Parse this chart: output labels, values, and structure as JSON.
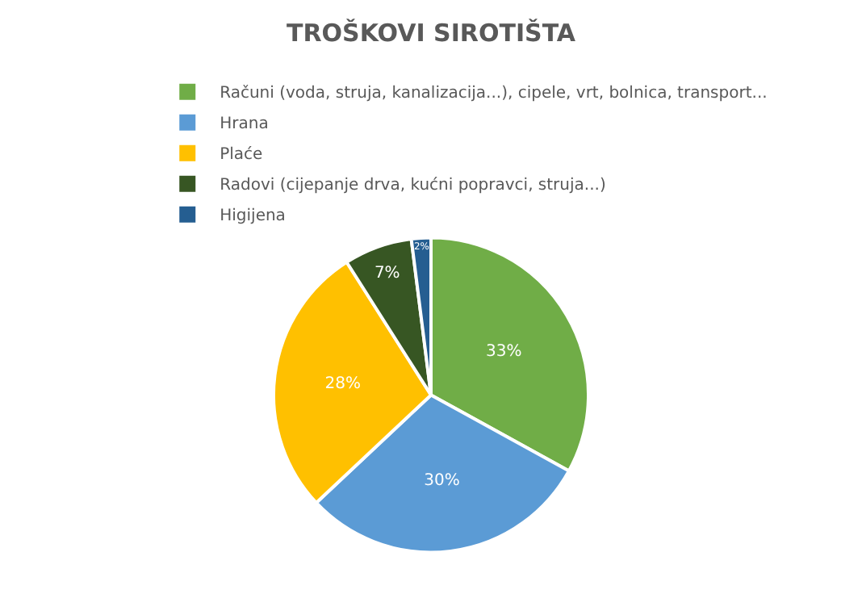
{
  "chart_data": {
    "type": "pie",
    "title": "TROŠKOVI SIROTIŠTA",
    "categories": [
      "Računi (voda, struja, kanalizacija...), cipele, vrt, bolnica, transport...",
      "Hrana",
      "Plaće",
      "Radovi (cijepanje drva, kućni popravci, struja...)",
      "Higijena"
    ],
    "values": [
      33,
      30,
      28,
      7,
      2
    ],
    "colors": [
      "#70ad47",
      "#5b9bd5",
      "#ffc000",
      "#375623",
      "#255e91"
    ],
    "value_labels": [
      "33%",
      "30%",
      "28%",
      "7%",
      "2%"
    ],
    "legend": "top"
  }
}
